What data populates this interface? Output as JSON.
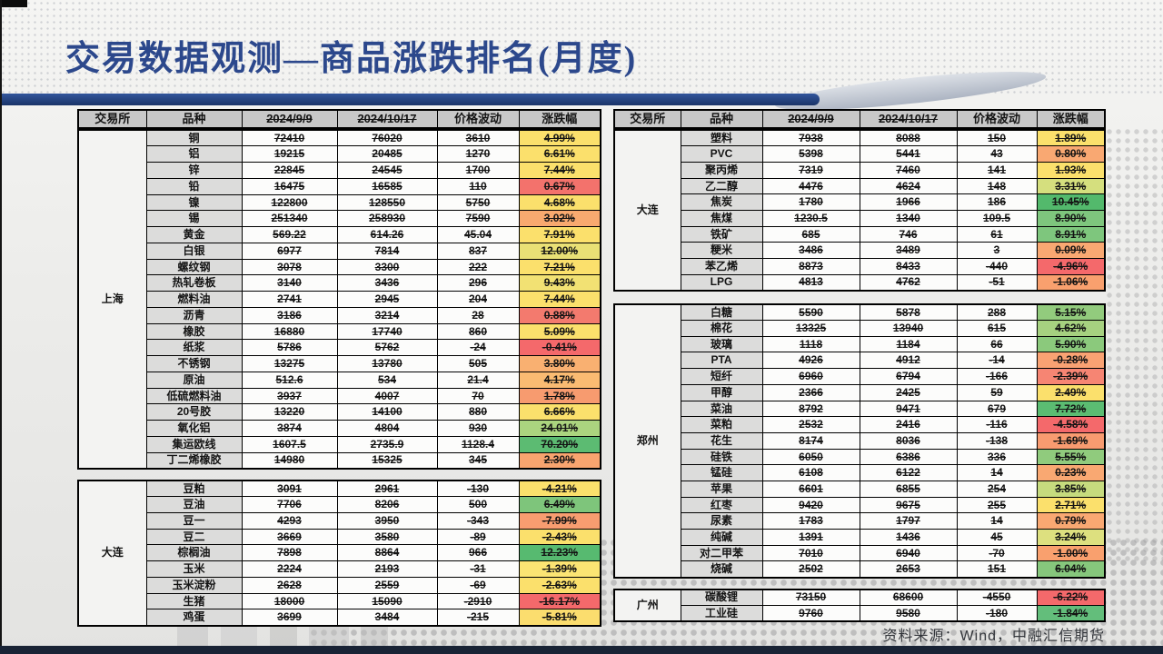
{
  "slide": {
    "title": "交易数据观测—商品涨跌排名(月度)",
    "source_note": "资料来源：Wind，中融汇信期货"
  },
  "colors": {
    "title_blue": "#2C488C",
    "accent_bar_blue": "#1C3568",
    "positive_text": "#F50000",
    "negative_text": "#00A14D",
    "header_bg": "#C8C8C8",
    "bottom_bar": "#192335"
  },
  "columns": [
    "交易所",
    "品种",
    "2024/9/9",
    "2024/10/17",
    "价格波动",
    "涨跌幅"
  ],
  "tables": {
    "left": {
      "blocks": [
        {
          "exchange": "上海",
          "rows": [
            [
              "铜",
              "72410",
              "76020",
              "3610",
              "4.99%",
              "#FBE06C"
            ],
            [
              "铝",
              "19215",
              "20485",
              "1270",
              "6.61%",
              "#FBE06C"
            ],
            [
              "锌",
              "22845",
              "24545",
              "1700",
              "7.44%",
              "#FBE06C"
            ],
            [
              "铅",
              "16475",
              "16585",
              "110",
              "0.67%",
              "#F3726C"
            ],
            [
              "镍",
              "122800",
              "128550",
              "5750",
              "4.68%",
              "#FBE06C"
            ],
            [
              "锡",
              "251340",
              "258930",
              "7590",
              "3.02%",
              "#F8A96F"
            ],
            [
              "黄金",
              "569.22",
              "614.26",
              "45.04",
              "7.91%",
              "#FBE06C"
            ],
            [
              "白银",
              "6977",
              "7814",
              "837",
              "12.00%",
              "#E9E075"
            ],
            [
              "螺纹钢",
              "3078",
              "3300",
              "222",
              "7.21%",
              "#FBE06C"
            ],
            [
              "热轧卷板",
              "3140",
              "3436",
              "296",
              "9.43%",
              "#F2E173"
            ],
            [
              "燃料油",
              "2741",
              "2945",
              "204",
              "7.44%",
              "#FBE06C"
            ],
            [
              "沥青",
              "3186",
              "3214",
              "28",
              "0.88%",
              "#F37A6E"
            ],
            [
              "橡胶",
              "16880",
              "17740",
              "860",
              "5.09%",
              "#FBE06C"
            ],
            [
              "纸浆",
              "5786",
              "5762",
              "-24",
              "-0.41%",
              "#F4696B"
            ],
            [
              "不锈钢",
              "13275",
              "13780",
              "505",
              "3.80%",
              "#F9B071"
            ],
            [
              "原油",
              "512.6",
              "534",
              "21.4",
              "4.17%",
              "#FABB72"
            ],
            [
              "低硫燃料油",
              "3937",
              "4007",
              "70",
              "1.78%",
              "#F79B6F"
            ],
            [
              "20号胶",
              "13220",
              "14100",
              "880",
              "6.66%",
              "#FBE06C"
            ],
            [
              "氧化铝",
              "3874",
              "4804",
              "930",
              "24.01%",
              "#ABD47F"
            ],
            [
              "集运欧线",
              "1607.5",
              "2735.9",
              "1128.4",
              "70.20%",
              "#5CBB72"
            ],
            [
              "丁二烯橡胶",
              "14980",
              "15325",
              "345",
              "2.30%",
              "#F8A46F"
            ]
          ]
        },
        {
          "exchange": "大连",
          "rows": [
            [
              "豆粕",
              "3091",
              "2961",
              "-130",
              "-4.21%",
              "#FBE06C"
            ],
            [
              "豆油",
              "7706",
              "8206",
              "500",
              "6.49%",
              "#7EC57B"
            ],
            [
              "豆一",
              "4293",
              "3950",
              "-343",
              "-7.99%",
              "#F89D70"
            ],
            [
              "豆二",
              "3669",
              "3580",
              "-89",
              "-2.43%",
              "#FBE06C"
            ],
            [
              "棕榈油",
              "7898",
              "8864",
              "966",
              "12.23%",
              "#57BA70"
            ],
            [
              "玉米",
              "2224",
              "2193",
              "-31",
              "-1.39%",
              "#FBE473"
            ],
            [
              "玉米淀粉",
              "2628",
              "2559",
              "-69",
              "-2.63%",
              "#FBE06C"
            ],
            [
              "生猪",
              "18000",
              "15090",
              "-2910",
              "-16.17%",
              "#F4696B"
            ],
            [
              "鸡蛋",
              "3699",
              "3484",
              "-215",
              "-5.81%",
              "#FBDD6E"
            ]
          ]
        }
      ]
    },
    "right": {
      "blocks": [
        {
          "exchange": "大连",
          "rows": [
            [
              "塑料",
              "7938",
              "8088",
              "150",
              "1.89%",
              "#FBE06C"
            ],
            [
              "PVC",
              "5398",
              "5441",
              "43",
              "0.80%",
              "#F9A872"
            ],
            [
              "聚丙烯",
              "7319",
              "7460",
              "141",
              "1.93%",
              "#FBE06C"
            ],
            [
              "乙二醇",
              "4476",
              "4624",
              "148",
              "3.31%",
              "#D5DF7E"
            ],
            [
              "焦炭",
              "1780",
              "1966",
              "186",
              "10.45%",
              "#53B96C"
            ],
            [
              "焦煤",
              "1230.5",
              "1340",
              "109.5",
              "8.90%",
              "#7EC67D"
            ],
            [
              "铁矿",
              "685",
              "746",
              "61",
              "8.91%",
              "#7EC67D"
            ],
            [
              "粳米",
              "3486",
              "3489",
              "3",
              "0.09%",
              "#F9A872"
            ],
            [
              "苯乙烯",
              "8873",
              "8433",
              "-440",
              "-4.96%",
              "#F4696B"
            ],
            [
              "LPG",
              "4813",
              "4762",
              "-51",
              "-1.06%",
              "#F9A06E"
            ]
          ]
        },
        {
          "exchange": "郑州",
          "rows": [
            [
              "白糖",
              "5590",
              "5878",
              "288",
              "5.15%",
              "#92CB7D"
            ],
            [
              "棉花",
              "13325",
              "13940",
              "615",
              "4.62%",
              "#A6D180"
            ],
            [
              "玻璃",
              "1118",
              "1184",
              "66",
              "5.90%",
              "#8BC97C"
            ],
            [
              "PTA",
              "4926",
              "4912",
              "-14",
              "-0.28%",
              "#F9A273"
            ],
            [
              "短纤",
              "6960",
              "6794",
              "-166",
              "-2.39%",
              "#F68573"
            ],
            [
              "甲醇",
              "2366",
              "2425",
              "59",
              "2.49%",
              "#FBE06C"
            ],
            [
              "菜油",
              "8792",
              "9471",
              "679",
              "7.72%",
              "#5BBC72"
            ],
            [
              "菜粕",
              "2532",
              "2416",
              "-116",
              "-4.58%",
              "#F4696B"
            ],
            [
              "花生",
              "8174",
              "8036",
              "-138",
              "-1.69%",
              "#F89B70"
            ],
            [
              "硅铁",
              "6050",
              "6386",
              "336",
              "5.55%",
              "#90CB7D"
            ],
            [
              "锰硅",
              "6108",
              "6122",
              "14",
              "0.23%",
              "#F9A872"
            ],
            [
              "苹果",
              "6601",
              "6855",
              "254",
              "3.85%",
              "#C6DB7E"
            ],
            [
              "红枣",
              "9420",
              "9675",
              "255",
              "2.71%",
              "#FBE06C"
            ],
            [
              "尿素",
              "1783",
              "1797",
              "14",
              "0.79%",
              "#F9A872"
            ],
            [
              "纯碱",
              "1391",
              "1436",
              "45",
              "3.24%",
              "#DDE07F"
            ],
            [
              "对二甲苯",
              "7010",
              "6940",
              "-70",
              "-1.00%",
              "#F9A06E"
            ],
            [
              "烧碱",
              "2502",
              "2653",
              "151",
              "6.04%",
              "#86C77C"
            ]
          ]
        },
        {
          "exchange": "广州",
          "rows": [
            [
              "碳酸锂",
              "73150",
              "68600",
              "-4550",
              "-6.22%",
              "#F4696B"
            ],
            [
              "工业硅",
              "9760",
              "9580",
              "-180",
              "-1.84%",
              "#63BE7B"
            ]
          ]
        }
      ]
    }
  }
}
